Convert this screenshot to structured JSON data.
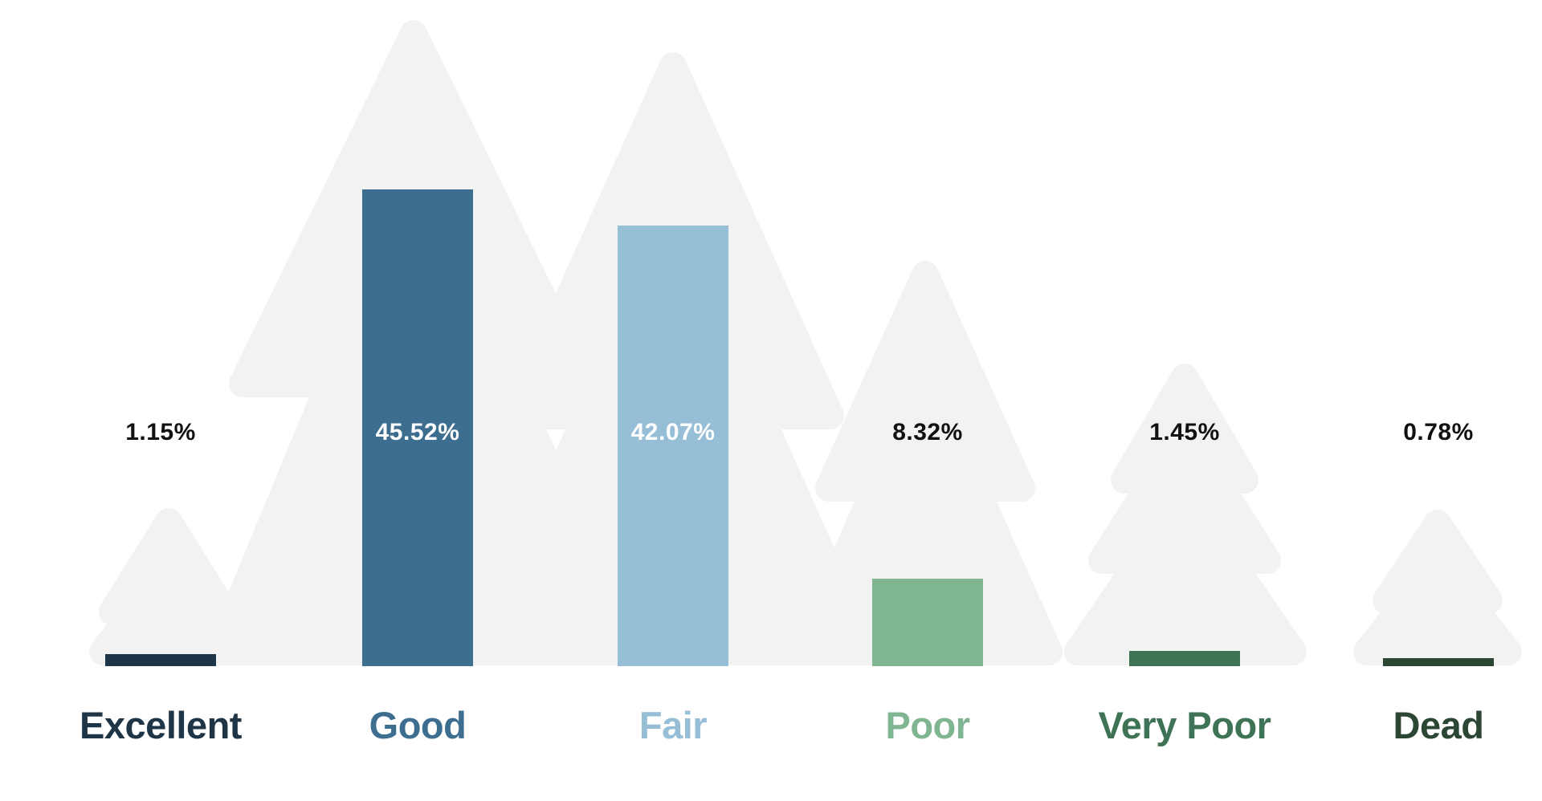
{
  "chart_data": {
    "type": "bar",
    "title": "",
    "xlabel": "",
    "ylabel": "",
    "categories": [
      "Excellent",
      "Good",
      "Fair",
      "Poor",
      "Very Poor",
      "Dead"
    ],
    "values": [
      1.15,
      45.52,
      42.07,
      8.32,
      1.45,
      0.78
    ],
    "value_labels": [
      "1.15%",
      "45.52%",
      "42.07%",
      "8.32%",
      "1.45%",
      "0.78%"
    ],
    "bar_colors": [
      "#1e3547",
      "#3d6e90",
      "#96bed6",
      "#80b591",
      "#3e7355",
      "#2b4734"
    ],
    "label_colors": [
      "#1e3547",
      "#3d6e90",
      "#96bed6",
      "#80b591",
      "#3e7355",
      "#2b4734"
    ],
    "value_label_colors": [
      "#111111",
      "#ffffff",
      "#ffffff",
      "#111111",
      "#111111",
      "#111111"
    ],
    "ylim": [
      0,
      46
    ],
    "grid": false,
    "legend": false,
    "background_decoration": "light gray pine-tree silhouettes",
    "decoration_color": "#f2f2f2",
    "background_color": "#ffffff"
  }
}
